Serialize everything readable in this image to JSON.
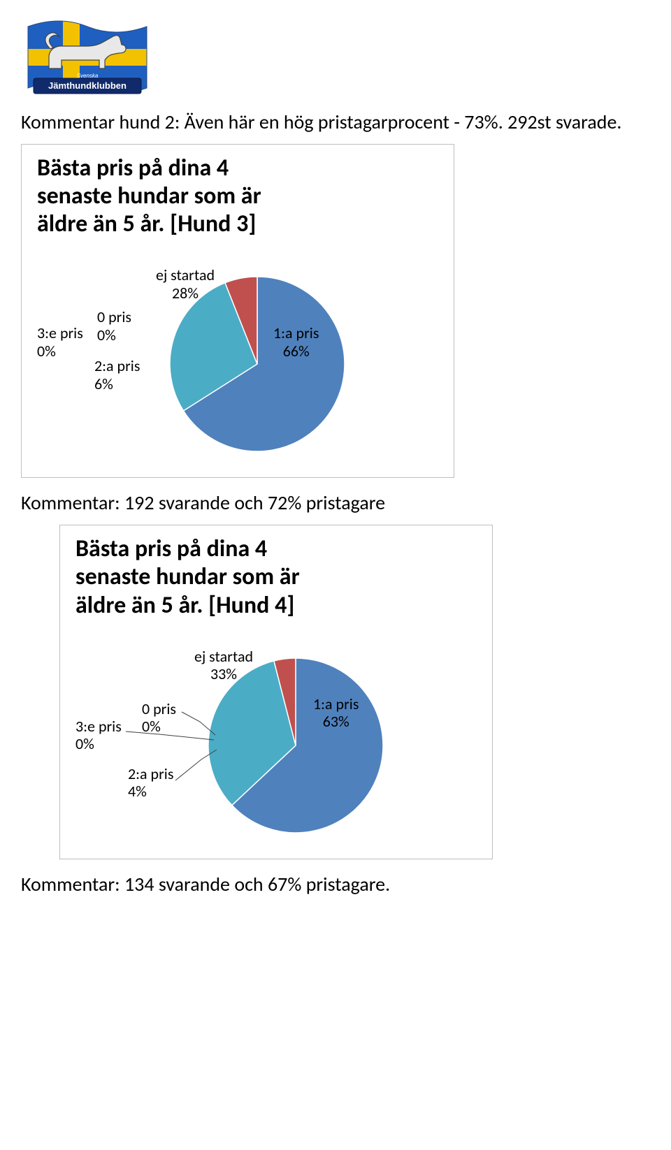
{
  "comment1": "Kommentar hund 2: Även här en hög pristagarprocent - 73%. 292st svarade.",
  "chart1": {
    "title_l1": "Bästa pris på dina 4",
    "title_l2": "senaste hundar som är",
    "title_l3": "äldre än 5 år. [Hund 3]",
    "type": "pie",
    "pie_diameter": 250,
    "slices": [
      {
        "key": "first",
        "label": "1:a pris\n66%",
        "value": 66,
        "color": "#4f81bd"
      },
      {
        "key": "ej",
        "label": "ej startad\n28%",
        "value": 28,
        "color": "#4bacc6"
      },
      {
        "key": "pris0",
        "label": "0 pris\n0%",
        "value": 0,
        "color": "#bfbfbf"
      },
      {
        "key": "third",
        "label": "3:e pris\n0%",
        "value": 0,
        "color": "#9bbb59"
      },
      {
        "key": "second",
        "label": "2:a pris\n6%",
        "value": 6,
        "color": "#c0504d"
      }
    ],
    "label_ej": "ej startad\n28%",
    "label_pris0": "0 pris\n0%",
    "label_third": "3:e pris\n0%",
    "label_second": "2:a pris\n6%",
    "label_first": "1:a pris\n66%",
    "background_color": "#ffffff",
    "border_color": "#bfbfbf",
    "title_fontsize": 34,
    "label_fontsize": 22
  },
  "comment2": "Kommentar: 192 svarande och 72% pristagare",
  "chart2": {
    "title_l1": "Bästa pris på dina 4",
    "title_l2": "senaste hundar som är",
    "title_l3": "äldre än 5 år. [Hund 4]",
    "type": "pie",
    "pie_diameter": 250,
    "slices": [
      {
        "key": "first",
        "label": "1:a pris\n63%",
        "value": 63,
        "color": "#4f81bd"
      },
      {
        "key": "ej",
        "label": "ej startad\n33%",
        "value": 33,
        "color": "#4bacc6"
      },
      {
        "key": "pris0",
        "label": "0 pris\n0%",
        "value": 0,
        "color": "#bfbfbf"
      },
      {
        "key": "third",
        "label": "3:e pris\n0%",
        "value": 0,
        "color": "#9bbb59"
      },
      {
        "key": "second",
        "label": "2:a pris\n4%",
        "value": 4,
        "color": "#c0504d"
      }
    ],
    "label_ej": "ej startad\n33%",
    "label_pris0": "0 pris\n0%",
    "label_third": "3:e pris\n0%",
    "label_second": "2:a pris\n4%",
    "label_first": "1:a pris\n63%",
    "background_color": "#ffffff",
    "border_color": "#bfbfbf",
    "title_fontsize": 34,
    "label_fontsize": 22
  },
  "comment3": "Kommentar: 134 svarande och 67% pristagare."
}
